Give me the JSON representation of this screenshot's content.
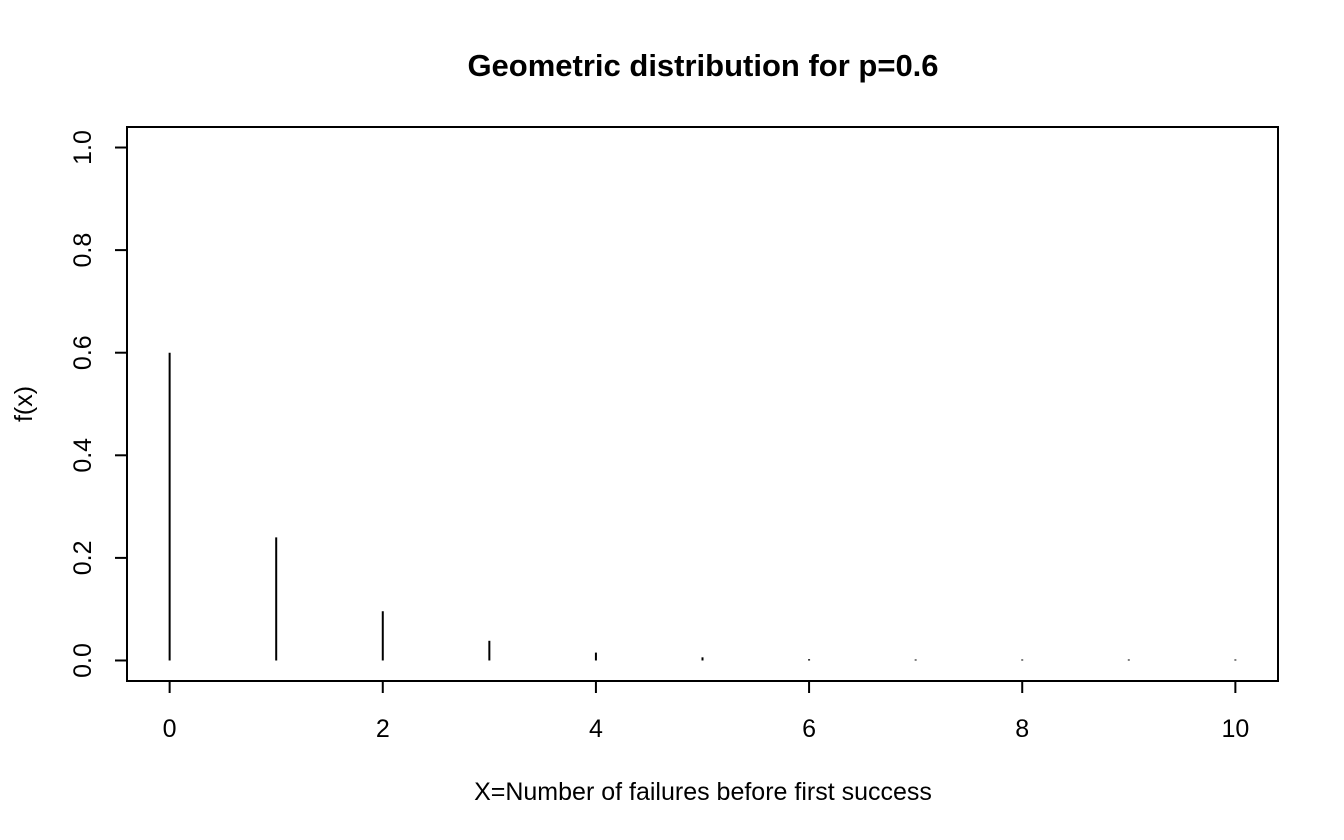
{
  "chart_data": {
    "type": "bar",
    "title": "Geometric distribution for p=0.6",
    "xlabel": "X=Number of failures before first success",
    "ylabel": "f(x)",
    "x": [
      0,
      1,
      2,
      3,
      4,
      5,
      6,
      7,
      8,
      9,
      10
    ],
    "values": [
      0.6,
      0.24,
      0.096,
      0.0384,
      0.01536,
      0.006144,
      0.0024576,
      0.00098304,
      0.000393216,
      0.0001572864,
      6.291456e-05
    ],
    "xlim": [
      -0.4,
      10.4
    ],
    "ylim": [
      -0.04,
      1.04
    ],
    "x_ticks": [
      "0",
      "2",
      "4",
      "6",
      "8",
      "10"
    ],
    "y_ticks": [
      "0.0",
      "0.2",
      "0.4",
      "0.6",
      "0.8",
      "1.0"
    ],
    "grid": false,
    "style": "histogram-spikes",
    "color": "#000000"
  }
}
